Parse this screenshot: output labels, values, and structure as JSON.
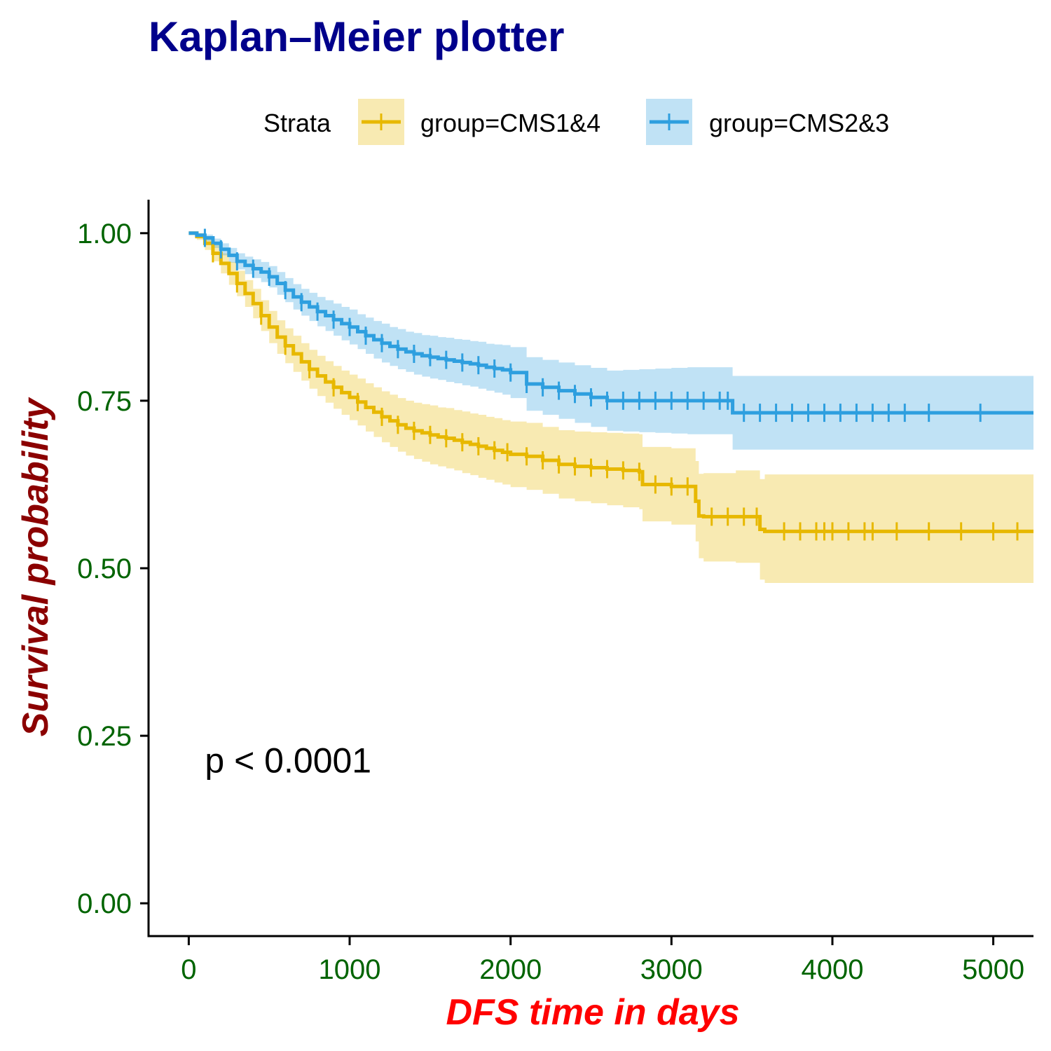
{
  "colors": {
    "title": "#00008B",
    "tick_labels": "#006400",
    "ylabel": "#8B0000",
    "xlabel": "#FF0000",
    "axis": "#000000"
  },
  "chart_data": {
    "type": "line",
    "subtype": "kaplan-meier survival curve",
    "title": "Kaplan–Meier plotter",
    "xlabel": "DFS time in days",
    "ylabel": "Survival probability",
    "xlim": [
      -250,
      5250
    ],
    "ylim": [
      -0.05,
      1.05
    ],
    "x_ticks": [
      0,
      1000,
      2000,
      3000,
      4000,
      5000
    ],
    "x_tick_labels": [
      "0",
      "1000",
      "2000",
      "3000",
      "4000",
      "5000"
    ],
    "y_ticks": [
      0.0,
      0.25,
      0.5,
      0.75,
      1.0
    ],
    "y_tick_labels": [
      "0.00",
      "0.25",
      "0.50",
      "0.75",
      "1.00"
    ],
    "grid": false,
    "legend": {
      "title": "Strata",
      "placement": "top",
      "entries": [
        "group=CMS1&4",
        "group=CMS2&3"
      ]
    },
    "annotation": "p < 0.0001",
    "annotation_position": [
      100,
      0.195
    ],
    "series": [
      {
        "name": "group=CMS1&4",
        "color": "#E7B800",
        "x": [
          0,
          50,
          100,
          150,
          200,
          250,
          300,
          350,
          400,
          450,
          500,
          550,
          600,
          650,
          700,
          750,
          800,
          850,
          900,
          950,
          1000,
          1050,
          1100,
          1150,
          1200,
          1250,
          1300,
          1350,
          1400,
          1450,
          1500,
          1550,
          1600,
          1650,
          1700,
          1750,
          1800,
          1850,
          1900,
          1950,
          2000,
          2100,
          2200,
          2300,
          2400,
          2500,
          2600,
          2700,
          2800,
          2820,
          3000,
          3150,
          3170,
          3200,
          3400,
          3550,
          3580,
          5250
        ],
        "y": [
          1.0,
          0.995,
          0.985,
          0.97,
          0.955,
          0.94,
          0.925,
          0.91,
          0.895,
          0.877,
          0.86,
          0.845,
          0.832,
          0.82,
          0.808,
          0.797,
          0.787,
          0.778,
          0.77,
          0.762,
          0.755,
          0.748,
          0.74,
          0.733,
          0.726,
          0.72,
          0.714,
          0.709,
          0.705,
          0.702,
          0.699,
          0.696,
          0.694,
          0.691,
          0.688,
          0.685,
          0.682,
          0.679,
          0.676,
          0.673,
          0.67,
          0.667,
          0.661,
          0.655,
          0.652,
          0.65,
          0.648,
          0.646,
          0.644,
          0.625,
          0.622,
          0.6,
          0.578,
          0.577,
          0.577,
          0.558,
          0.555,
          0.555
        ],
        "ci_lower": [
          1.0,
          0.99,
          0.975,
          0.958,
          0.94,
          0.923,
          0.906,
          0.89,
          0.873,
          0.854,
          0.836,
          0.82,
          0.806,
          0.793,
          0.78,
          0.768,
          0.757,
          0.747,
          0.738,
          0.729,
          0.721,
          0.713,
          0.704,
          0.696,
          0.688,
          0.681,
          0.674,
          0.668,
          0.663,
          0.659,
          0.655,
          0.652,
          0.649,
          0.646,
          0.642,
          0.639,
          0.635,
          0.632,
          0.628,
          0.625,
          0.621,
          0.617,
          0.611,
          0.604,
          0.6,
          0.597,
          0.594,
          0.591,
          0.588,
          0.57,
          0.565,
          0.54,
          0.515,
          0.51,
          0.508,
          0.483,
          0.478,
          0.478
        ],
        "ci_upper": [
          1.0,
          1.0,
          0.995,
          0.982,
          0.97,
          0.957,
          0.944,
          0.93,
          0.917,
          0.9,
          0.884,
          0.87,
          0.858,
          0.847,
          0.836,
          0.826,
          0.817,
          0.809,
          0.802,
          0.795,
          0.789,
          0.783,
          0.776,
          0.77,
          0.764,
          0.759,
          0.754,
          0.75,
          0.747,
          0.745,
          0.743,
          0.74,
          0.739,
          0.736,
          0.734,
          0.731,
          0.729,
          0.726,
          0.724,
          0.721,
          0.719,
          0.717,
          0.711,
          0.706,
          0.704,
          0.703,
          0.702,
          0.701,
          0.7,
          0.681,
          0.679,
          0.66,
          0.641,
          0.642,
          0.646,
          0.633,
          0.64,
          0.64
        ],
        "censor_x": [
          150,
          300,
          450,
          600,
          750,
          900,
          1050,
          1200,
          1300,
          1400,
          1500,
          1600,
          1700,
          1800,
          1900,
          1980,
          2100,
          2200,
          2300,
          2400,
          2500,
          2600,
          2700,
          2800,
          2900,
          3000,
          3100,
          3250,
          3350,
          3450,
          3530,
          3700,
          3800,
          3900,
          3950,
          4000,
          4100,
          4200,
          4250,
          4400,
          4600,
          4800,
          5000,
          5150
        ]
      },
      {
        "name": "group=CMS2&3",
        "color": "#2E9FDF",
        "x": [
          0,
          50,
          100,
          150,
          200,
          250,
          300,
          350,
          400,
          450,
          500,
          550,
          600,
          650,
          700,
          750,
          800,
          850,
          900,
          950,
          1000,
          1050,
          1100,
          1150,
          1200,
          1250,
          1300,
          1350,
          1400,
          1450,
          1500,
          1550,
          1600,
          1650,
          1700,
          1750,
          1800,
          1850,
          1900,
          1950,
          2000,
          2100,
          2200,
          2300,
          2400,
          2500,
          2600,
          2700,
          2800,
          2900,
          3000,
          3100,
          3200,
          3300,
          3380,
          5250
        ],
        "y": [
          1.0,
          0.997,
          0.993,
          0.985,
          0.976,
          0.967,
          0.958,
          0.952,
          0.947,
          0.942,
          0.935,
          0.925,
          0.915,
          0.905,
          0.897,
          0.89,
          0.883,
          0.877,
          0.871,
          0.865,
          0.86,
          0.853,
          0.847,
          0.841,
          0.836,
          0.831,
          0.827,
          0.823,
          0.82,
          0.817,
          0.815,
          0.813,
          0.811,
          0.809,
          0.807,
          0.805,
          0.803,
          0.8,
          0.798,
          0.796,
          0.792,
          0.775,
          0.77,
          0.765,
          0.76,
          0.755,
          0.75,
          0.75,
          0.75,
          0.75,
          0.75,
          0.75,
          0.75,
          0.75,
          0.732,
          0.732
        ],
        "ci_lower": [
          1.0,
          0.994,
          0.988,
          0.978,
          0.967,
          0.956,
          0.946,
          0.939,
          0.933,
          0.927,
          0.919,
          0.908,
          0.897,
          0.886,
          0.877,
          0.869,
          0.861,
          0.854,
          0.847,
          0.84,
          0.834,
          0.827,
          0.82,
          0.813,
          0.807,
          0.802,
          0.797,
          0.793,
          0.789,
          0.786,
          0.783,
          0.781,
          0.778,
          0.776,
          0.773,
          0.771,
          0.768,
          0.765,
          0.762,
          0.759,
          0.754,
          0.735,
          0.729,
          0.723,
          0.717,
          0.711,
          0.705,
          0.704,
          0.703,
          0.702,
          0.701,
          0.7,
          0.7,
          0.7,
          0.677,
          0.677
        ],
        "ci_upper": [
          1.0,
          1.0,
          0.998,
          0.992,
          0.985,
          0.978,
          0.97,
          0.965,
          0.961,
          0.957,
          0.951,
          0.942,
          0.933,
          0.924,
          0.917,
          0.911,
          0.905,
          0.9,
          0.895,
          0.89,
          0.886,
          0.879,
          0.874,
          0.869,
          0.865,
          0.86,
          0.857,
          0.853,
          0.851,
          0.848,
          0.847,
          0.845,
          0.844,
          0.842,
          0.841,
          0.839,
          0.838,
          0.835,
          0.834,
          0.833,
          0.83,
          0.815,
          0.811,
          0.807,
          0.803,
          0.799,
          0.795,
          0.796,
          0.797,
          0.798,
          0.799,
          0.8,
          0.8,
          0.8,
          0.787,
          0.787
        ],
        "censor_x": [
          100,
          200,
          300,
          400,
          500,
          600,
          700,
          800,
          900,
          1000,
          1100,
          1200,
          1300,
          1400,
          1500,
          1600,
          1700,
          1800,
          1900,
          2000,
          2100,
          2200,
          2300,
          2400,
          2500,
          2600,
          2700,
          2800,
          2900,
          3000,
          3100,
          3200,
          3300,
          3350,
          3450,
          3550,
          3650,
          3750,
          3850,
          3950,
          4050,
          4150,
          4250,
          4350,
          4450,
          4600,
          4920
        ]
      }
    ]
  }
}
